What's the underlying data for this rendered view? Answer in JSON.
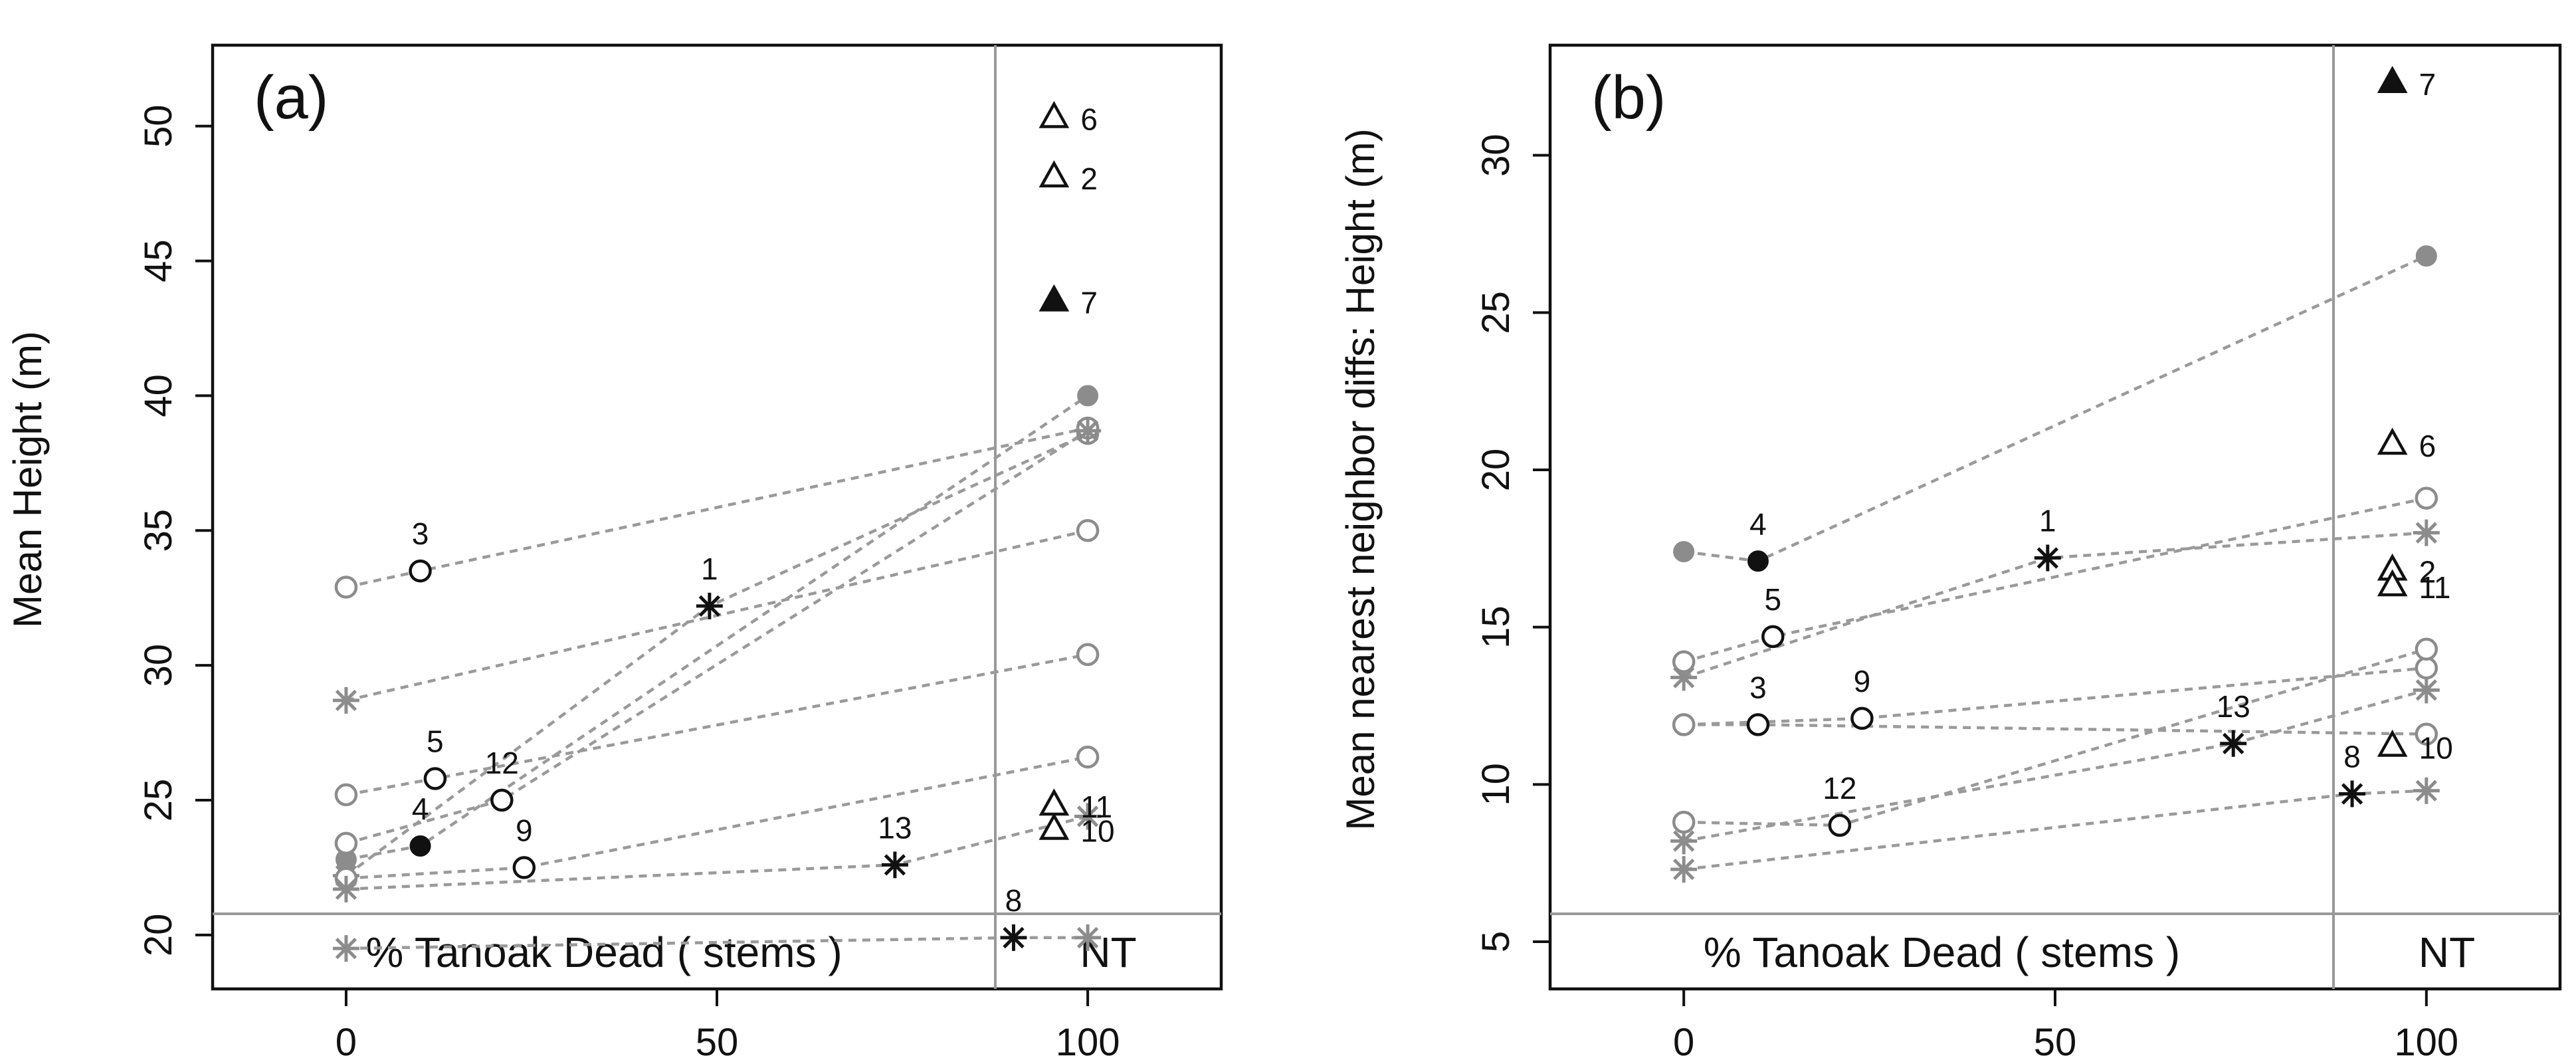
{
  "chart_data": [
    {
      "id": "a",
      "type": "scatter",
      "panel_label": "(a)",
      "xlabel": "",
      "inner_xlabel": "% Tanoak Dead   ( stems )",
      "nt_label": "NT",
      "ylabel": "Mean Height (m)",
      "xlim": [
        -18,
        118
      ],
      "ylim": [
        18,
        53
      ],
      "x_ticks": [
        0,
        50,
        100
      ],
      "y_ticks": [
        20,
        25,
        30,
        35,
        40,
        45,
        50
      ],
      "grid": false,
      "series": [
        {
          "plot": "1",
          "marker": "asterisk",
          "x": 49,
          "y": 32.2,
          "label": "1",
          "baseline": 22.2,
          "final": 38.6,
          "final_marker": "circle-gray"
        },
        {
          "plot": "3",
          "marker": "circle-open",
          "x": 10,
          "y": 33.5,
          "label": "3",
          "baseline": 32.9,
          "final": 38.8,
          "final_marker": "circle-gray"
        },
        {
          "plot": "4",
          "marker": "circle-filled",
          "x": 10,
          "y": 23.3,
          "label": "4",
          "baseline": 22.8,
          "final": 40.0,
          "final_marker": "dot-gray"
        },
        {
          "plot": "5",
          "marker": "circle-open",
          "x": 12,
          "y": 25.8,
          "label": "5",
          "baseline": 25.2,
          "final": 30.4,
          "final_marker": "circle-gray"
        },
        {
          "plot": "12",
          "marker": "circle-open",
          "x": 21,
          "y": 25.0,
          "label": "12",
          "baseline": 23.4,
          "final": 38.7,
          "final_marker": "star-gray"
        },
        {
          "plot": "9",
          "marker": "circle-open",
          "x": 24,
          "y": 22.5,
          "label": "9",
          "baseline": 22.1,
          "final": 26.6,
          "final_marker": "circle-gray"
        },
        {
          "plot": "13",
          "marker": "asterisk",
          "x": 74,
          "y": 22.6,
          "label": "13",
          "baseline": 21.7,
          "final": 24.4,
          "final_marker": "star-gray"
        },
        {
          "plot": "8",
          "marker": "asterisk",
          "x": 90,
          "y": 19.9,
          "label": "8",
          "baseline": 19.5,
          "final": 19.9,
          "final_marker": "star-gray"
        }
      ],
      "extra_lines": [
        {
          "from": [
            0,
            28.7
          ],
          "to": [
            100,
            35.0
          ],
          "from_marker": "star-gray",
          "to_marker": "circle-gray"
        }
      ],
      "nt_points": [
        {
          "label": "6",
          "y": 50.3,
          "marker": "triangle-open"
        },
        {
          "label": "2",
          "y": 48.1,
          "marker": "triangle-open"
        },
        {
          "label": "7",
          "y": 43.5,
          "marker": "triangle-filled"
        },
        {
          "label": "11",
          "y": 24.8,
          "marker": "triangle-open"
        },
        {
          "label": "10",
          "y": 23.9,
          "marker": "triangle-open"
        }
      ]
    },
    {
      "id": "b",
      "type": "scatter",
      "panel_label": "(b)",
      "xlabel": "",
      "inner_xlabel": "% Tanoak Dead   ( stems )",
      "nt_label": "NT",
      "ylabel": "Mean nearest neighbor diffs: Height (m)",
      "xlim": [
        -18,
        118
      ],
      "ylim": [
        3.5,
        33.5
      ],
      "x_ticks": [
        0,
        50,
        100
      ],
      "y_ticks": [
        5,
        10,
        15,
        20,
        25,
        30
      ],
      "grid": false,
      "series": [
        {
          "plot": "4",
          "marker": "circle-filled",
          "x": 10,
          "y": 17.1,
          "label": "4",
          "baseline": 17.4,
          "final": 26.8,
          "final_marker": "dot-gray"
        },
        {
          "plot": "1",
          "marker": "asterisk",
          "x": 49,
          "y": 17.2,
          "label": "1",
          "baseline": 13.4,
          "final": 18.0,
          "final_marker": "star-gray"
        },
        {
          "plot": "5",
          "marker": "circle-open",
          "x": 12,
          "y": 14.7,
          "label": "5",
          "baseline": 13.9,
          "final": 19.1,
          "final_marker": "circle-gray"
        },
        {
          "plot": "3",
          "marker": "circle-open",
          "x": 10,
          "y": 11.9,
          "label": "3",
          "baseline": 11.9,
          "final": 11.6,
          "final_marker": "circle-gray"
        },
        {
          "plot": "9",
          "marker": "circle-open",
          "x": 24,
          "y": 12.1,
          "label": "9",
          "baseline": 11.9,
          "final": 13.7,
          "final_marker": "circle-gray"
        },
        {
          "plot": "13",
          "marker": "asterisk",
          "x": 74,
          "y": 11.3,
          "label": "13",
          "baseline": 8.2,
          "final": 13.0,
          "final_marker": "star-gray"
        },
        {
          "plot": "12",
          "marker": "circle-open",
          "x": 21,
          "y": 8.7,
          "label": "12",
          "baseline": 8.8,
          "final": 14.3,
          "final_marker": "circle-gray"
        },
        {
          "plot": "8",
          "marker": "asterisk",
          "x": 90,
          "y": 9.7,
          "label": "8",
          "baseline": 7.3,
          "final": 9.8,
          "final_marker": "star-gray"
        }
      ],
      "extra_lines": [],
      "nt_points": [
        {
          "label": "7",
          "y": 32.3,
          "marker": "triangle-filled"
        },
        {
          "label": "6",
          "y": 20.8,
          "marker": "triangle-open"
        },
        {
          "label": "2",
          "y": 16.8,
          "marker": "triangle-open"
        },
        {
          "label": "11",
          "y": 16.3,
          "marker": "triangle-open"
        },
        {
          "label": "10",
          "y": 11.2,
          "marker": "triangle-open"
        }
      ]
    }
  ],
  "colors": {
    "frame": "#111111",
    "divider": "#999999",
    "connector": "#9a9a9a",
    "gray_marker": "#8c8c8c",
    "black_marker": "#111111",
    "text": "#111111"
  }
}
